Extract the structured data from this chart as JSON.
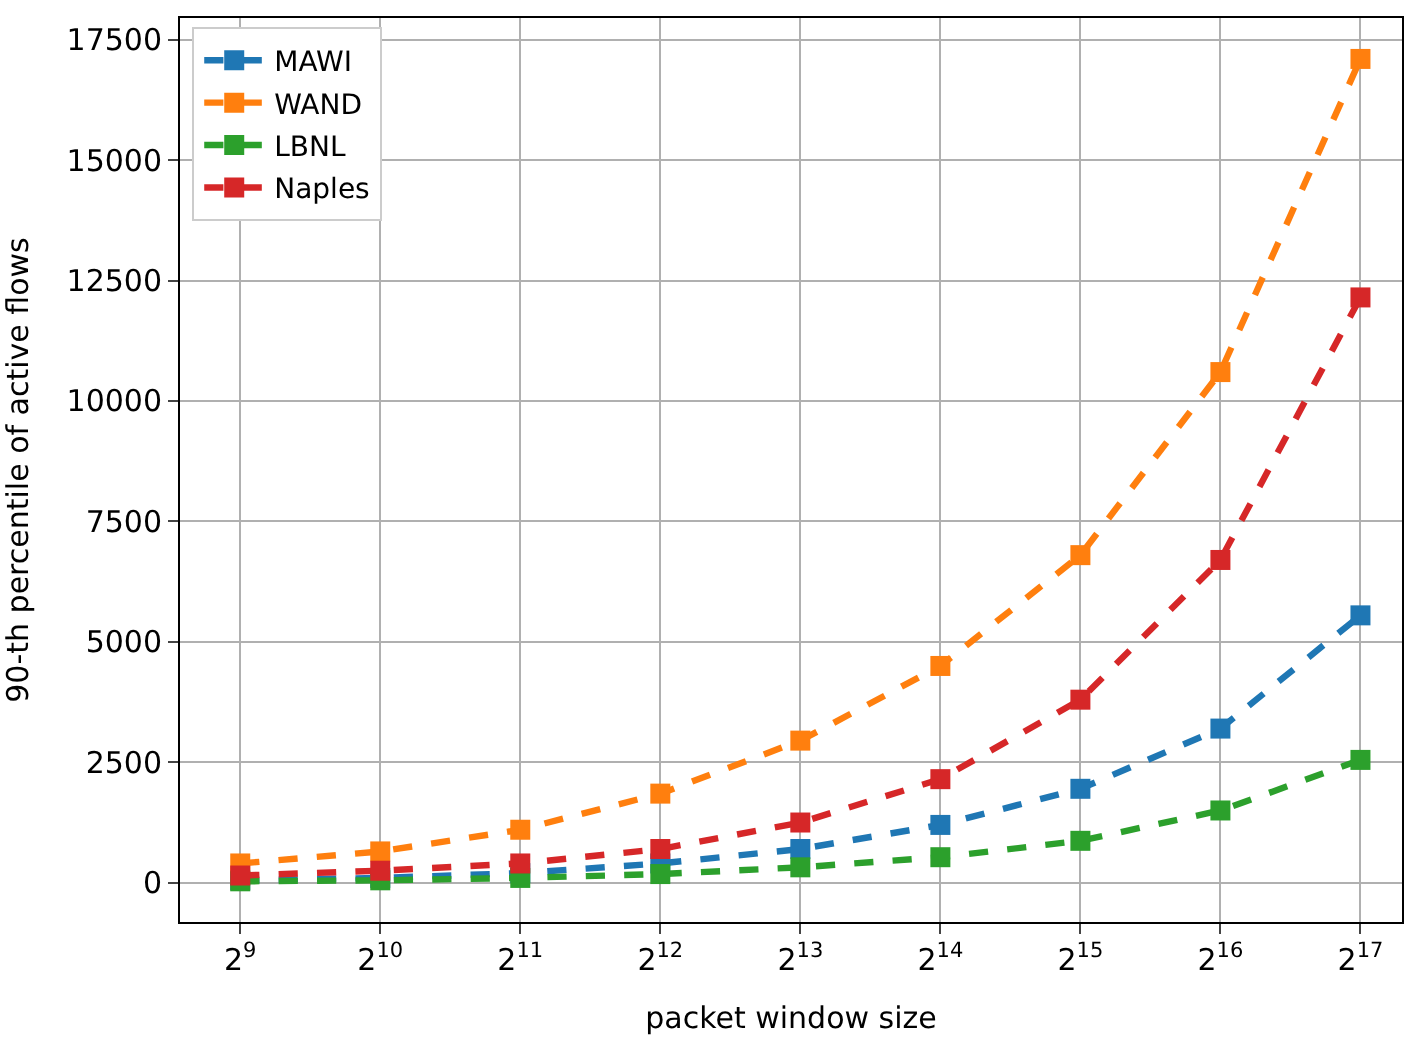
{
  "chart_data": {
    "type": "line",
    "xlabel": "packet window size",
    "ylabel": "90-th percentile of active flows",
    "x": [
      512,
      1024,
      2048,
      4096,
      8192,
      16384,
      32768,
      65536,
      131072
    ],
    "series": [
      {
        "name": "MAWI",
        "color": "#1f77b4",
        "values": [
          50,
          100,
          200,
          400,
          700,
          1200,
          1950,
          3200,
          5550
        ]
      },
      {
        "name": "WAND",
        "color": "#ff7f0e",
        "values": [
          400,
          650,
          1100,
          1850,
          2950,
          4500,
          6800,
          10600,
          17100
        ]
      },
      {
        "name": "LBNL",
        "color": "#2ca02c",
        "values": [
          30,
          50,
          100,
          180,
          320,
          530,
          870,
          1500,
          2550
        ]
      },
      {
        "name": "Naples",
        "color": "#d62728",
        "values": [
          150,
          250,
          400,
          700,
          1250,
          2150,
          3800,
          6700,
          12150
        ]
      }
    ],
    "log": "x",
    "xlim": [
      380,
      161000
    ],
    "xticks": [
      {
        "value": 512,
        "label": "2$^{9}$"
      },
      {
        "value": 1024,
        "label": "2$^{10}$"
      },
      {
        "value": 2048,
        "label": "2$^{11}$"
      },
      {
        "value": 4096,
        "label": "2$^{12}$"
      },
      {
        "value": 8192,
        "label": "2$^{13}$"
      },
      {
        "value": 16384,
        "label": "2$^{14}$"
      },
      {
        "value": 32768,
        "label": "2$^{15}$"
      },
      {
        "value": 65536,
        "label": "2$^{16}$"
      },
      {
        "value": 131072,
        "label": "2$^{17}$"
      }
    ],
    "ylim": [
      -815,
      17950
    ],
    "yticks": [
      0,
      2500,
      5000,
      7500,
      10000,
      12500,
      15000,
      17500
    ],
    "grid": true,
    "legend": "top left",
    "marker": "square",
    "line_style": "dashed"
  }
}
